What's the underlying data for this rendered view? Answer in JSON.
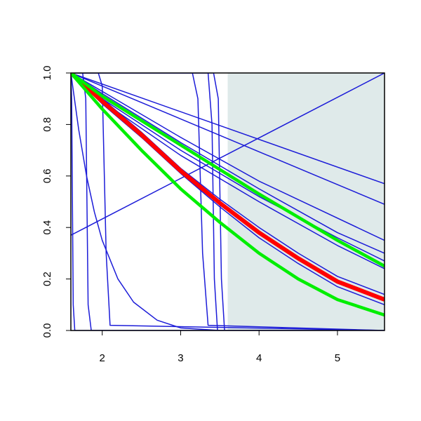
{
  "chart_data": {
    "type": "line",
    "xlim": [
      1.6,
      5.6
    ],
    "ylim": [
      0,
      1
    ],
    "xticks": [
      2,
      3,
      4,
      5
    ],
    "yticks": [
      {
        "value": 0,
        "label": "0.0"
      },
      {
        "value": 0.2,
        "label": "0.2"
      },
      {
        "value": 0.4,
        "label": "0.4"
      },
      {
        "value": 0.6,
        "label": "0.6"
      },
      {
        "value": 0.8,
        "label": "0.8"
      },
      {
        "value": 1,
        "label": "1.0"
      }
    ],
    "highlight_x_range": [
      3.6,
      5.6
    ],
    "highlight_color": "#dfeaea",
    "series": [
      {
        "color": "#1c1cd8",
        "line_width": 1.5,
        "x": [
          1.6,
          5.6
        ],
        "values": [
          0.37,
          1.0
        ]
      },
      {
        "color": "#1c1cd8",
        "line_width": 1.5,
        "x": [
          1.6,
          5.6
        ],
        "values": [
          1,
          0.57
        ]
      },
      {
        "color": "#1c1cd8",
        "line_width": 1.5,
        "x": [
          1.6,
          5.6
        ],
        "values": [
          1,
          0.49
        ]
      },
      {
        "color": "#1c1cd8",
        "line_width": 1.5,
        "x": [
          1.6,
          3,
          4,
          5.6
        ],
        "values": [
          1,
          0.75,
          0.58,
          0.35
        ]
      },
      {
        "color": "#1c1cd8",
        "line_width": 1.5,
        "x": [
          1.6,
          2,
          3,
          4,
          5,
          5.6
        ],
        "values": [
          1,
          0.92,
          0.73,
          0.55,
          0.38,
          0.3
        ]
      },
      {
        "color": "#1c1cd8",
        "line_width": 1.5,
        "x": [
          1.6,
          2,
          3,
          4,
          5,
          5.6
        ],
        "values": [
          1,
          0.9,
          0.7,
          0.52,
          0.36,
          0.27
        ]
      },
      {
        "color": "#1c1cd8",
        "line_width": 1.5,
        "x": [
          1.6,
          2,
          3,
          4,
          5,
          5.6
        ],
        "values": [
          1,
          0.89,
          0.68,
          0.5,
          0.33,
          0.24
        ]
      },
      {
        "color": "#1c1cd8",
        "line_width": 1.5,
        "x": [
          1.6,
          2,
          2.5,
          3,
          3.5,
          4,
          4.5,
          5,
          5.6
        ],
        "values": [
          1,
          0.88,
          0.75,
          0.61,
          0.48,
          0.36,
          0.26,
          0.17,
          0.1
        ]
      },
      {
        "color": "#1c1cd8",
        "line_width": 1.5,
        "x": [
          1.6,
          2,
          2.5,
          3,
          3.5,
          4,
          4.5,
          5,
          5.6
        ],
        "values": [
          1,
          0.9,
          0.77,
          0.63,
          0.51,
          0.4,
          0.3,
          0.21,
          0.14
        ]
      },
      {
        "color": "#1c1cd8",
        "line_width": 1.5,
        "x": [
          1.6,
          1.61,
          1.63,
          1.65,
          5.6
        ],
        "values": [
          1,
          0.9,
          0.1,
          0,
          0
        ]
      },
      {
        "color": "#1c1cd8",
        "line_width": 1.5,
        "x": [
          1.6,
          1.75,
          1.79,
          1.82,
          1.86,
          5.6
        ],
        "values": [
          1,
          1,
          0.9,
          0.1,
          0,
          0
        ]
      },
      {
        "color": "#1c1cd8",
        "line_width": 1.5,
        "x": [
          1.6,
          1.95,
          2.0,
          2.05,
          2.1,
          5.6
        ],
        "values": [
          1,
          1,
          0.95,
          0.3,
          0.02,
          0
        ]
      },
      {
        "color": "#1c1cd8",
        "line_width": 1.5,
        "x": [
          1.6,
          1.7,
          1.8,
          1.9,
          2,
          2.2,
          2.4,
          2.7,
          3,
          3.5
        ],
        "values": [
          1,
          0.78,
          0.6,
          0.46,
          0.35,
          0.2,
          0.11,
          0.04,
          0.01,
          0
        ]
      },
      {
        "color": "#1c1cd8",
        "line_width": 1.5,
        "x": [
          1.6,
          3.15,
          3.22,
          3.28,
          3.35,
          5.6
        ],
        "values": [
          1,
          1,
          0.9,
          0.3,
          0.02,
          0
        ]
      },
      {
        "color": "#1c1cd8",
        "line_width": 1.5,
        "x": [
          1.6,
          3.35,
          3.4,
          3.43,
          3.47,
          5.6
        ],
        "values": [
          1,
          1,
          0.8,
          0.2,
          0,
          0
        ]
      },
      {
        "color": "#1c1cd8",
        "line_width": 1.5,
        "x": [
          1.6,
          3.42,
          3.48,
          3.52,
          3.56,
          5.6
        ],
        "values": [
          1,
          1,
          0.9,
          0.2,
          0,
          0
        ]
      },
      {
        "color": "#ff0000",
        "line_width": 6,
        "x": [
          1.6,
          2,
          2.5,
          3,
          3.5,
          4,
          4.5,
          5,
          5.6
        ],
        "values": [
          1,
          0.89,
          0.76,
          0.62,
          0.495,
          0.38,
          0.28,
          0.19,
          0.12
        ]
      },
      {
        "color": "#00ee00",
        "line_width": 4.5,
        "x": [
          1.6,
          2,
          3,
          4,
          5,
          5.6
        ],
        "values": [
          1,
          0.91,
          0.72,
          0.53,
          0.35,
          0.25
        ]
      },
      {
        "color": "#00ee00",
        "line_width": 4.5,
        "x": [
          1.6,
          2,
          2.5,
          3,
          3.5,
          4,
          4.5,
          5,
          5.6
        ],
        "values": [
          1,
          0.86,
          0.7,
          0.55,
          0.42,
          0.3,
          0.2,
          0.12,
          0.06
        ]
      }
    ]
  }
}
